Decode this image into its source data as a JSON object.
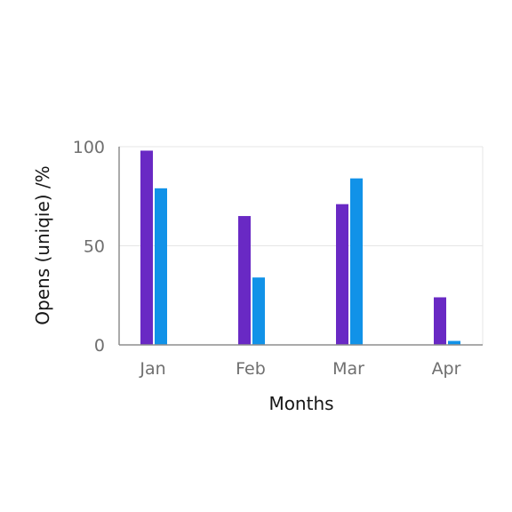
{
  "chart_data": {
    "type": "bar",
    "categories": [
      "Jan",
      "Feb",
      "Mar",
      "Apr"
    ],
    "series": [
      {
        "values": [
          98,
          65,
          71,
          24
        ],
        "color": "#6929c4"
      },
      {
        "values": [
          79,
          34,
          84,
          2
        ],
        "color": "#1192e8"
      }
    ],
    "xlabel": "Months",
    "ylabel": "Opens (uniqie) /%",
    "ylim": [
      0,
      100
    ],
    "yticks": [
      0,
      50,
      100
    ],
    "grid": true,
    "legend": "none"
  }
}
